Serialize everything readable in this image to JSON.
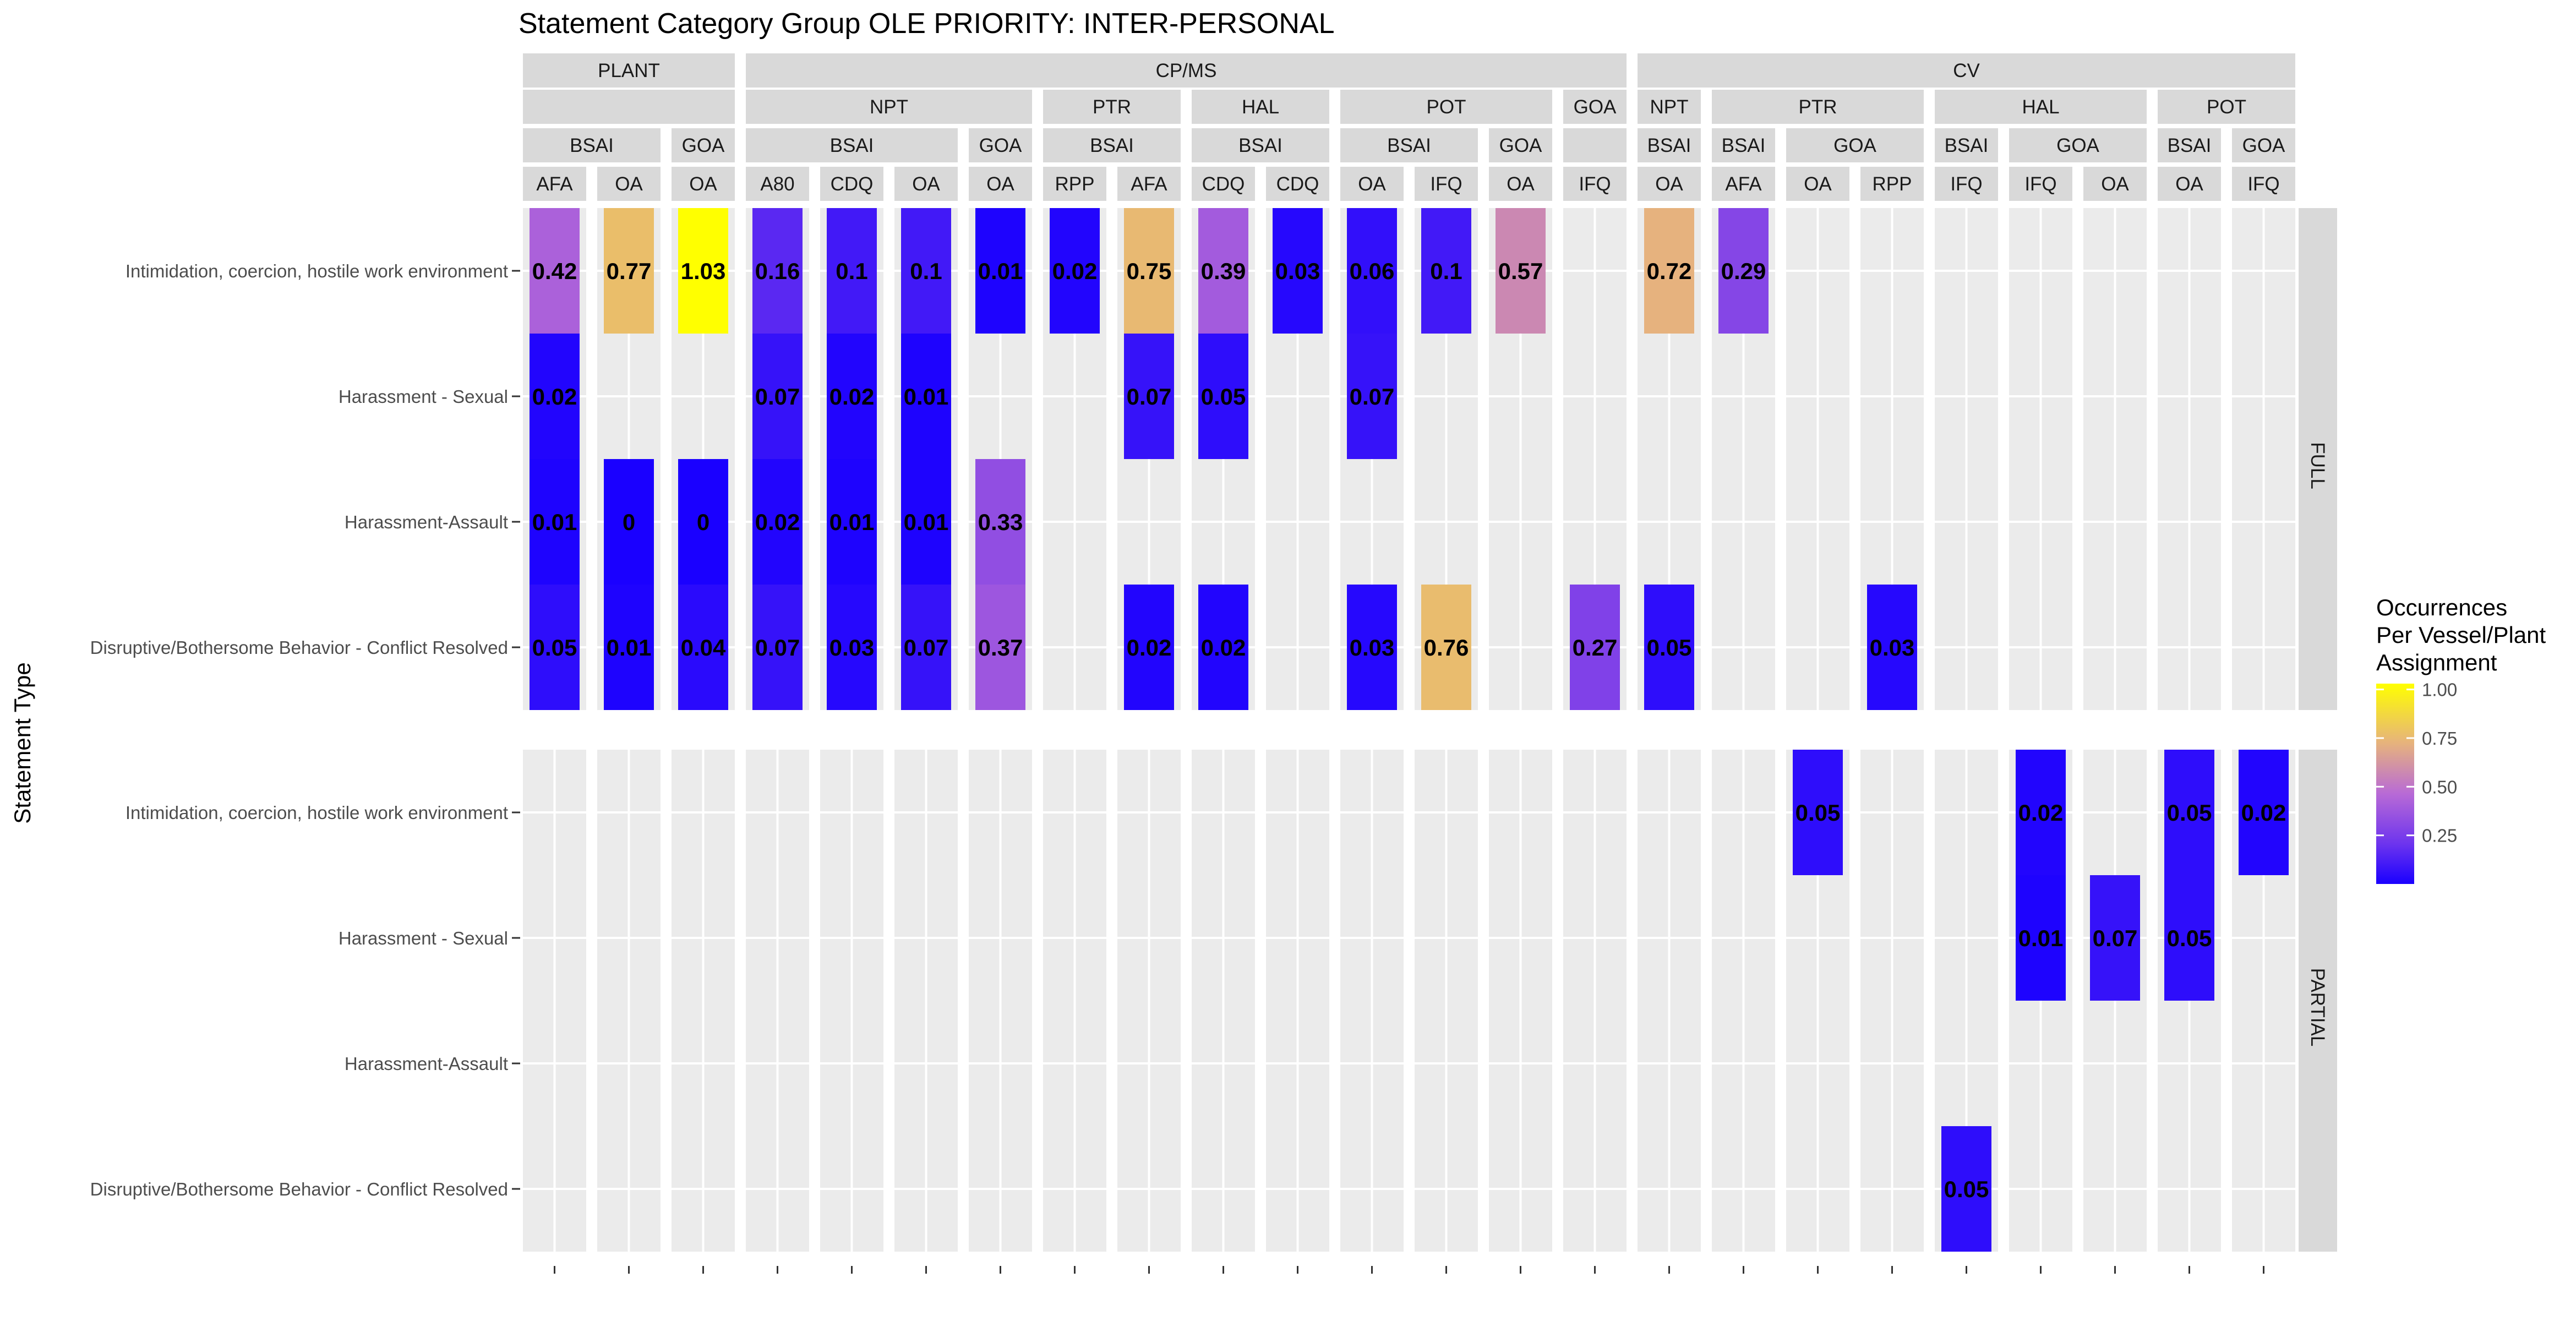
{
  "chart_data": {
    "type": "heatmap",
    "title": "Statement Category Group OLE PRIORITY: INTER-PERSONAL",
    "ylabel": "Statement Type",
    "xlabel": "",
    "colorscale": {
      "low": "#0000ff",
      "mid": "#ffff00",
      "high": "#ffff00",
      "range": [
        0,
        1.03
      ],
      "lowColor": "#0000FF",
      "highColor": "#FFFF00",
      "midColor": "#E8B87A"
    },
    "legend": {
      "title_lines": [
        "Occurrences",
        "Per Vessel/Plant",
        "Assignment"
      ],
      "ticks": [
        "0.25",
        "0.50",
        "0.75",
        "1.00"
      ],
      "tick_values": [
        0.25,
        0.5,
        0.75,
        1.0
      ],
      "placement": "right"
    },
    "row_panels": [
      "FULL",
      "PARTIAL"
    ],
    "categories_y": [
      "Intimidation, coercion, hostile work environment",
      "Harassment - Sexual",
      "Harassment-Assault",
      "Disruptive/Bothersome Behavior - Conflict Resolved"
    ],
    "level1": [
      {
        "label": "PLANT",
        "first": 0,
        "last": 2
      },
      {
        "label": "CP/MS",
        "first": 3,
        "last": 14
      },
      {
        "label": "CV",
        "first": 15,
        "last": 23
      }
    ],
    "level2": [
      {
        "label": "",
        "first": 0,
        "last": 2
      },
      {
        "label": "NPT",
        "first": 3,
        "last": 6
      },
      {
        "label": "PTR",
        "first": 7,
        "last": 8
      },
      {
        "label": "HAL",
        "first": 9,
        "last": 10
      },
      {
        "label": "POT",
        "first": 11,
        "last": 13
      },
      {
        "label": "GOA",
        "first": 14,
        "last": 14
      },
      {
        "label": "NPT",
        "first": 15,
        "last": 15
      },
      {
        "label": "PTR",
        "first": 16,
        "last": 18
      },
      {
        "label": "HAL",
        "first": 19,
        "last": 21
      },
      {
        "label": "POT",
        "first": 22,
        "last": 23
      }
    ],
    "level3": [
      {
        "label": "BSAI",
        "first": 0,
        "last": 1
      },
      {
        "label": "GOA",
        "first": 2,
        "last": 2
      },
      {
        "label": "BSAI",
        "first": 3,
        "last": 5
      },
      {
        "label": "GOA",
        "first": 6,
        "last": 6
      },
      {
        "label": "BSAI",
        "first": 7,
        "last": 8
      },
      {
        "label": "BSAI",
        "first": 9,
        "last": 10
      },
      {
        "label": "BSAI",
        "first": 11,
        "last": 12
      },
      {
        "label": "GOA",
        "first": 13,
        "last": 13
      },
      {
        "label": "",
        "first": 14,
        "last": 14
      },
      {
        "label": "BSAI",
        "first": 15,
        "last": 15
      },
      {
        "label": "BSAI",
        "first": 16,
        "last": 16
      },
      {
        "label": "GOA",
        "first": 17,
        "last": 18
      },
      {
        "label": "BSAI",
        "first": 19,
        "last": 19
      },
      {
        "label": "GOA",
        "first": 20,
        "last": 21
      },
      {
        "label": "BSAI",
        "first": 22,
        "last": 22
      },
      {
        "label": "GOA",
        "first": 23,
        "last": 23
      }
    ],
    "level4": [
      "AFA",
      "OA",
      "OA",
      "A80",
      "CDQ",
      "OA",
      "OA",
      "RPP",
      "AFA",
      "CDQ",
      "CDQ",
      "OA",
      "IFQ",
      "OA",
      "IFQ",
      "OA",
      "AFA",
      "OA",
      "RPP",
      "IFQ",
      "IFQ",
      "OA",
      "OA",
      "IFQ"
    ],
    "cells": [
      {
        "panel": 0,
        "row": 0,
        "col": 0,
        "value": 0.42
      },
      {
        "panel": 0,
        "row": 0,
        "col": 1,
        "value": 0.77
      },
      {
        "panel": 0,
        "row": 0,
        "col": 2,
        "value": 1.03
      },
      {
        "panel": 0,
        "row": 0,
        "col": 3,
        "value": 0.16
      },
      {
        "panel": 0,
        "row": 0,
        "col": 4,
        "value": 0.1
      },
      {
        "panel": 0,
        "row": 0,
        "col": 5,
        "value": 0.1
      },
      {
        "panel": 0,
        "row": 0,
        "col": 6,
        "value": 0.01
      },
      {
        "panel": 0,
        "row": 0,
        "col": 7,
        "value": 0.02
      },
      {
        "panel": 0,
        "row": 0,
        "col": 8,
        "value": 0.75
      },
      {
        "panel": 0,
        "row": 0,
        "col": 9,
        "value": 0.39
      },
      {
        "panel": 0,
        "row": 0,
        "col": 10,
        "value": 0.03
      },
      {
        "panel": 0,
        "row": 0,
        "col": 11,
        "value": 0.06
      },
      {
        "panel": 0,
        "row": 0,
        "col": 12,
        "value": 0.1
      },
      {
        "panel": 0,
        "row": 0,
        "col": 13,
        "value": 0.57
      },
      {
        "panel": 0,
        "row": 0,
        "col": 15,
        "value": 0.72
      },
      {
        "panel": 0,
        "row": 0,
        "col": 16,
        "value": 0.29
      },
      {
        "panel": 0,
        "row": 1,
        "col": 0,
        "value": 0.02
      },
      {
        "panel": 0,
        "row": 1,
        "col": 3,
        "value": 0.07
      },
      {
        "panel": 0,
        "row": 1,
        "col": 4,
        "value": 0.02
      },
      {
        "panel": 0,
        "row": 1,
        "col": 5,
        "value": 0.01
      },
      {
        "panel": 0,
        "row": 1,
        "col": 8,
        "value": 0.07
      },
      {
        "panel": 0,
        "row": 1,
        "col": 9,
        "value": 0.05
      },
      {
        "panel": 0,
        "row": 1,
        "col": 11,
        "value": 0.07
      },
      {
        "panel": 0,
        "row": 2,
        "col": 0,
        "value": 0.01
      },
      {
        "panel": 0,
        "row": 2,
        "col": 1,
        "value": 0
      },
      {
        "panel": 0,
        "row": 2,
        "col": 2,
        "value": 0
      },
      {
        "panel": 0,
        "row": 2,
        "col": 3,
        "value": 0.02
      },
      {
        "panel": 0,
        "row": 2,
        "col": 4,
        "value": 0.01
      },
      {
        "panel": 0,
        "row": 2,
        "col": 5,
        "value": 0.01
      },
      {
        "panel": 0,
        "row": 2,
        "col": 6,
        "value": 0.33
      },
      {
        "panel": 0,
        "row": 3,
        "col": 0,
        "value": 0.05
      },
      {
        "panel": 0,
        "row": 3,
        "col": 1,
        "value": 0.01
      },
      {
        "panel": 0,
        "row": 3,
        "col": 2,
        "value": 0.04
      },
      {
        "panel": 0,
        "row": 3,
        "col": 3,
        "value": 0.07
      },
      {
        "panel": 0,
        "row": 3,
        "col": 4,
        "value": 0.03
      },
      {
        "panel": 0,
        "row": 3,
        "col": 5,
        "value": 0.07
      },
      {
        "panel": 0,
        "row": 3,
        "col": 6,
        "value": 0.37
      },
      {
        "panel": 0,
        "row": 3,
        "col": 8,
        "value": 0.02
      },
      {
        "panel": 0,
        "row": 3,
        "col": 9,
        "value": 0.02
      },
      {
        "panel": 0,
        "row": 3,
        "col": 11,
        "value": 0.03
      },
      {
        "panel": 0,
        "row": 3,
        "col": 12,
        "value": 0.76
      },
      {
        "panel": 0,
        "row": 3,
        "col": 14,
        "value": 0.27
      },
      {
        "panel": 0,
        "row": 3,
        "col": 15,
        "value": 0.05
      },
      {
        "panel": 0,
        "row": 3,
        "col": 18,
        "value": 0.03
      },
      {
        "panel": 1,
        "row": 0,
        "col": 17,
        "value": 0.05
      },
      {
        "panel": 1,
        "row": 0,
        "col": 20,
        "value": 0.02
      },
      {
        "panel": 1,
        "row": 0,
        "col": 22,
        "value": 0.05
      },
      {
        "panel": 1,
        "row": 0,
        "col": 23,
        "value": 0.02
      },
      {
        "panel": 1,
        "row": 1,
        "col": 20,
        "value": 0.01
      },
      {
        "panel": 1,
        "row": 1,
        "col": 21,
        "value": 0.07
      },
      {
        "panel": 1,
        "row": 1,
        "col": 22,
        "value": 0.05
      },
      {
        "panel": 1,
        "row": 3,
        "col": 19,
        "value": 0.05
      }
    ]
  }
}
